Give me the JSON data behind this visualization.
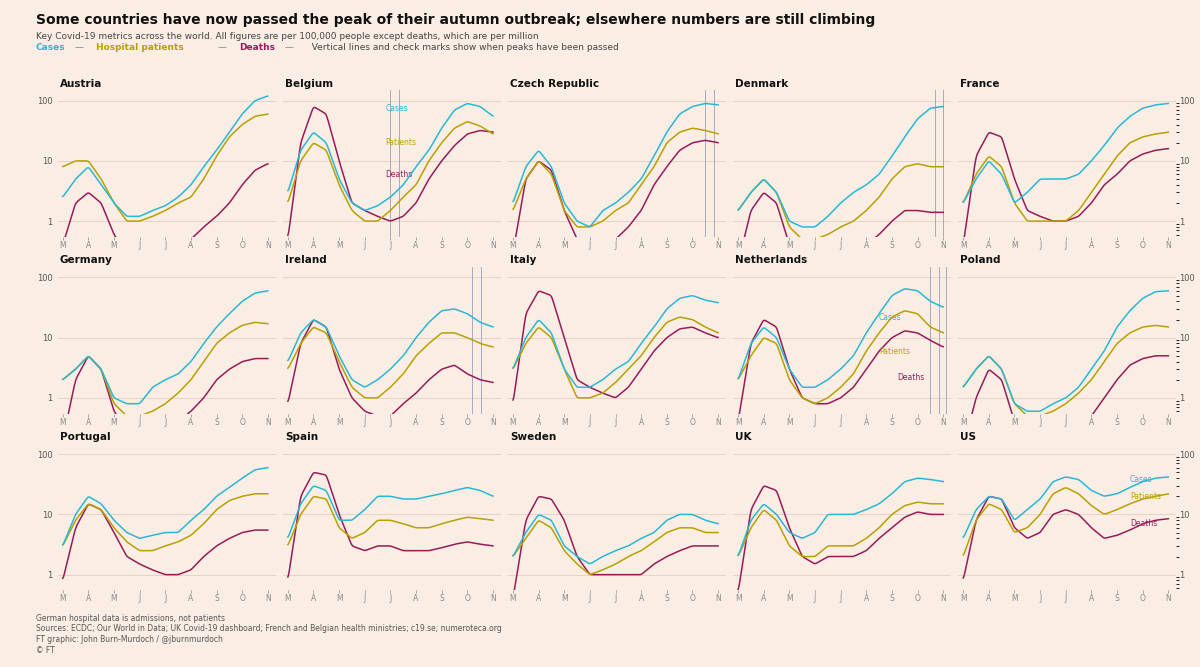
{
  "title": "Some countries have now passed the peak of their autumn outbreak; elsewhere numbers are still climbing",
  "subtitle": "Key Covid-19 metrics across the world. All figures are per 100,000 people except deaths, which are per million",
  "legend_items": [
    "Cases",
    "Hospital patients",
    "Deaths"
  ],
  "legend_colors": [
    "#2ab7d6",
    "#b8a000",
    "#971b5a"
  ],
  "legend_note": "  Vertical lines and check marks show when peaks have been passed",
  "footer_lines": [
    "German hospital data is admissions, not patients",
    "Sources: ECDC; Our World in Data; UK Covid-19 dashboard; French and Belgian health ministries; c19.se; numeroteca.org",
    "FT graphic: John Burn-Murdoch / @jburnmurdoch",
    "© FT"
  ],
  "background_color": "#faeee4",
  "grid_color": "#ddc9b8",
  "cases_color": "#2ab7d6",
  "patients_color": "#b8a000",
  "deaths_color": "#971b5a",
  "vline_color": "#a8a8c0",
  "check_color": "#971b5a",
  "countries": [
    "Austria",
    "Belgium",
    "Czech Republic",
    "Denmark",
    "France",
    "Germany",
    "Ireland",
    "Italy",
    "Netherlands",
    "Poland",
    "Portugal",
    "Spain",
    "Sweden",
    "UK",
    "US"
  ],
  "months_labels": [
    "M",
    "A",
    "M",
    "J",
    "J",
    "A",
    "S",
    "O",
    "N"
  ],
  "country_data": {
    "Austria": {
      "cases": [
        2.5,
        5,
        8,
        4,
        2,
        1.2,
        1.2,
        1.5,
        1.8,
        2.5,
        4,
        8,
        15,
        30,
        60,
        100,
        120
      ],
      "patients": [
        8,
        10,
        10,
        5,
        2,
        1.0,
        1.0,
        1.2,
        1.5,
        2,
        2.5,
        5,
        12,
        25,
        40,
        55,
        60
      ],
      "deaths": [
        0.4,
        2,
        3,
        2,
        0.6,
        0.3,
        0.3,
        0.3,
        0.3,
        0.4,
        0.5,
        0.8,
        1.2,
        2,
        4,
        7,
        9
      ],
      "vlines": [],
      "checkmarks": [],
      "annotations": {}
    },
    "Belgium": {
      "cases": [
        3,
        15,
        30,
        20,
        5,
        2,
        1.5,
        1.8,
        2.5,
        4,
        8,
        15,
        35,
        70,
        90,
        80,
        55
      ],
      "patients": [
        2,
        10,
        20,
        15,
        4,
        1.5,
        1,
        1,
        1.5,
        2.5,
        4,
        10,
        20,
        35,
        45,
        38,
        28
      ],
      "deaths": [
        0.5,
        20,
        80,
        60,
        10,
        2,
        1.5,
        1.2,
        1,
        1.2,
        2,
        5,
        10,
        18,
        28,
        32,
        30
      ],
      "vlines": [
        4.0,
        4.35
      ],
      "checkmarks": [
        4.0,
        4.35
      ],
      "annotations": {
        "Cases": [
          3.8,
          75
        ],
        "Patients": [
          3.8,
          20
        ],
        "Deaths": [
          3.8,
          6
        ]
      }
    },
    "Czech Republic": {
      "cases": [
        2,
        8,
        15,
        8,
        2,
        1,
        0.8,
        1.5,
        2,
        3,
        5,
        12,
        30,
        60,
        80,
        90,
        85
      ],
      "patients": [
        1.5,
        5,
        10,
        6,
        1.5,
        0.8,
        0.8,
        1,
        1.5,
        2,
        4,
        8,
        20,
        30,
        35,
        32,
        28
      ],
      "deaths": [
        0.3,
        5,
        10,
        7,
        1.5,
        0.5,
        0.4,
        0.5,
        0.5,
        0.8,
        1.5,
        4,
        8,
        15,
        20,
        22,
        20
      ],
      "vlines": [
        7.5,
        7.85
      ],
      "checkmarks": [
        7.5,
        7.85
      ],
      "annotations": {}
    },
    "Denmark": {
      "cases": [
        1.5,
        3,
        5,
        3,
        1,
        0.8,
        0.8,
        1.2,
        2,
        3,
        4,
        6,
        12,
        25,
        50,
        75,
        80
      ],
      "patients": [
        1.5,
        3,
        5,
        3,
        0.8,
        0.5,
        0.5,
        0.6,
        0.8,
        1,
        1.5,
        2.5,
        5,
        8,
        9,
        8,
        8
      ],
      "deaths": [
        0.2,
        1.5,
        3,
        2,
        0.4,
        0.2,
        0.2,
        0.2,
        0.25,
        0.3,
        0.4,
        0.6,
        1,
        1.5,
        1.5,
        1.4,
        1.4
      ],
      "vlines": [
        7.7,
        8.0
      ],
      "checkmarks": [
        7.7,
        8.0
      ],
      "annotations": {}
    },
    "France": {
      "cases": [
        2,
        5,
        10,
        6,
        2,
        3,
        5,
        5,
        5,
        6,
        10,
        18,
        35,
        55,
        75,
        85,
        90
      ],
      "patients": [
        2,
        6,
        12,
        8,
        2,
        1,
        1,
        1,
        1,
        1.5,
        3,
        6,
        12,
        20,
        25,
        28,
        30
      ],
      "deaths": [
        0.4,
        12,
        30,
        25,
        5,
        1.5,
        1.2,
        1,
        1,
        1.2,
        2,
        4,
        6,
        10,
        13,
        15,
        16
      ],
      "vlines": [
        8.3
      ],
      "checkmarks": [
        8.3
      ],
      "annotations": {}
    },
    "Germany": {
      "cases": [
        2,
        3,
        5,
        3,
        1,
        0.8,
        0.8,
        1.5,
        2,
        2.5,
        4,
        8,
        15,
        25,
        40,
        55,
        60
      ],
      "patients": [
        2,
        3,
        5,
        3,
        0.8,
        0.5,
        0.5,
        0.6,
        0.8,
        1.2,
        2,
        4,
        8,
        12,
        16,
        18,
        17
      ],
      "deaths": [
        0.2,
        2,
        5,
        3,
        0.6,
        0.3,
        0.3,
        0.3,
        0.3,
        0.4,
        0.6,
        1,
        2,
        3,
        4,
        4.5,
        4.5
      ],
      "vlines": [],
      "checkmarks": [],
      "annotations": {}
    },
    "Ireland": {
      "cases": [
        4,
        12,
        20,
        15,
        5,
        2,
        1.5,
        2,
        3,
        5,
        10,
        18,
        28,
        30,
        25,
        18,
        15
      ],
      "patients": [
        3,
        8,
        15,
        12,
        4,
        1.5,
        1,
        1,
        1.5,
        2.5,
        5,
        8,
        12,
        12,
        10,
        8,
        7
      ],
      "deaths": [
        0.8,
        8,
        20,
        15,
        3,
        1,
        0.6,
        0.5,
        0.5,
        0.8,
        1.2,
        2,
        3,
        3.5,
        2.5,
        2,
        1.8
      ],
      "vlines": [
        7.2,
        7.55
      ],
      "checkmarks": [
        7.2,
        7.55
      ],
      "annotations": {}
    },
    "Italy": {
      "cases": [
        3,
        10,
        20,
        12,
        3,
        1.5,
        1.5,
        2,
        3,
        4,
        8,
        15,
        30,
        45,
        50,
        42,
        38
      ],
      "patients": [
        3,
        8,
        15,
        10,
        3,
        1,
        1,
        1.2,
        1.8,
        3,
        5,
        10,
        18,
        22,
        20,
        15,
        12
      ],
      "deaths": [
        0.8,
        25,
        60,
        50,
        10,
        2,
        1.5,
        1.2,
        1,
        1.5,
        3,
        6,
        10,
        14,
        15,
        12,
        10
      ],
      "vlines": [],
      "checkmarks": [],
      "annotations": {}
    },
    "Netherlands": {
      "cases": [
        2,
        8,
        15,
        10,
        3,
        1.5,
        1.5,
        2,
        3,
        5,
        12,
        25,
        50,
        65,
        60,
        40,
        32
      ],
      "patients": [
        2,
        5,
        10,
        8,
        2,
        1,
        0.8,
        1,
        1.5,
        2.5,
        6,
        12,
        22,
        28,
        25,
        15,
        12
      ],
      "deaths": [
        0.4,
        8,
        20,
        15,
        3,
        1,
        0.8,
        0.8,
        1,
        1.5,
        3,
        6,
        10,
        13,
        12,
        9,
        7
      ],
      "vlines": [
        7.5,
        7.82,
        8.12
      ],
      "checkmarks": [
        7.5,
        7.82,
        8.12
      ],
      "annotations": {
        "Cases": [
          5.5,
          22
        ],
        "Patients": [
          5.5,
          6
        ],
        "Deaths": [
          6.2,
          2.2
        ]
      }
    },
    "Poland": {
      "cases": [
        1.5,
        3,
        5,
        3,
        0.8,
        0.6,
        0.6,
        0.8,
        1,
        1.5,
        3,
        6,
        15,
        28,
        45,
        58,
        60
      ],
      "patients": [
        1.5,
        3,
        5,
        3,
        0.8,
        0.5,
        0.5,
        0.6,
        0.8,
        1.2,
        2,
        4,
        8,
        12,
        15,
        16,
        15
      ],
      "deaths": [
        0.15,
        1,
        3,
        2,
        0.4,
        0.2,
        0.15,
        0.2,
        0.2,
        0.3,
        0.5,
        1,
        2,
        3.5,
        4.5,
        5,
        5
      ],
      "vlines": [
        8.3
      ],
      "checkmarks": [
        8.3
      ],
      "annotations": {}
    },
    "Portugal": {
      "cases": [
        3,
        10,
        20,
        15,
        8,
        5,
        4,
        4.5,
        5,
        5,
        8,
        12,
        20,
        28,
        40,
        55,
        60
      ],
      "patients": [
        3,
        8,
        15,
        12,
        6,
        3.5,
        2.5,
        2.5,
        3,
        3.5,
        4.5,
        7,
        12,
        17,
        20,
        22,
        22
      ],
      "deaths": [
        0.8,
        6,
        15,
        12,
        5,
        2,
        1.5,
        1.2,
        1,
        1,
        1.2,
        2,
        3,
        4,
        5,
        5.5,
        5.5
      ],
      "vlines": [],
      "checkmarks": [],
      "annotations": {}
    },
    "Spain": {
      "cases": [
        4,
        15,
        30,
        25,
        8,
        8,
        12,
        20,
        20,
        18,
        18,
        20,
        22,
        25,
        28,
        25,
        20
      ],
      "patients": [
        3,
        10,
        20,
        18,
        6,
        4,
        5,
        8,
        8,
        7,
        6,
        6,
        7,
        8,
        9,
        8.5,
        8
      ],
      "deaths": [
        0.8,
        20,
        50,
        45,
        10,
        3,
        2.5,
        3,
        3,
        2.5,
        2.5,
        2.5,
        2.8,
        3.2,
        3.5,
        3.2,
        3
      ],
      "vlines": [],
      "checkmarks": [],
      "annotations": {}
    },
    "Sweden": {
      "cases": [
        2,
        5,
        10,
        8,
        3,
        2,
        1.5,
        2,
        2.5,
        3,
        4,
        5,
        8,
        10,
        10,
        8,
        7
      ],
      "patients": [
        2,
        4,
        8,
        6,
        2.5,
        1.5,
        1,
        1.2,
        1.5,
        2,
        2.5,
        3.5,
        5,
        6,
        6,
        5,
        5
      ],
      "deaths": [
        0.4,
        8,
        20,
        18,
        8,
        2,
        1,
        1,
        1,
        1,
        1,
        1.5,
        2,
        2.5,
        3,
        3,
        3
      ],
      "vlines": [],
      "checkmarks": [],
      "annotations": {}
    },
    "UK": {
      "cases": [
        2,
        8,
        15,
        10,
        5,
        4,
        5,
        10,
        10,
        10,
        12,
        15,
        22,
        35,
        40,
        38,
        35
      ],
      "patients": [
        2,
        6,
        12,
        8,
        3,
        2,
        2,
        3,
        3,
        3,
        4,
        6,
        10,
        14,
        16,
        15,
        15
      ],
      "deaths": [
        0.5,
        12,
        30,
        25,
        6,
        2,
        1.5,
        2,
        2,
        2,
        2.5,
        4,
        6,
        9,
        11,
        10,
        10
      ],
      "vlines": [],
      "checkmarks": [],
      "annotations": {}
    },
    "US": {
      "cases": [
        4,
        12,
        20,
        18,
        8,
        12,
        18,
        35,
        42,
        38,
        25,
        20,
        22,
        28,
        35,
        40,
        42
      ],
      "patients": [
        2,
        8,
        15,
        12,
        5,
        6,
        10,
        22,
        28,
        22,
        14,
        10,
        12,
        15,
        18,
        20,
        22
      ],
      "deaths": [
        0.8,
        8,
        20,
        18,
        6,
        4,
        5,
        10,
        12,
        10,
        6,
        4,
        4.5,
        5.5,
        7,
        8,
        8.5
      ],
      "vlines": [],
      "checkmarks": [],
      "annotations": {
        "Cases": [
          6.5,
          38
        ],
        "Patients": [
          6.5,
          20
        ],
        "Deaths": [
          6.5,
          7
        ]
      }
    }
  }
}
